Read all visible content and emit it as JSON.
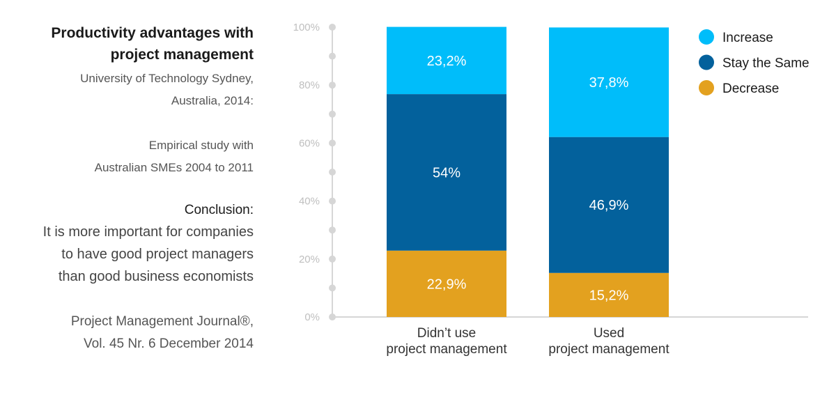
{
  "side_text": {
    "title_line1": "Productivity advantages with",
    "title_line2": "project management",
    "source_line1": "University of Technology Sydney,",
    "source_line2": "Australia, 2014:",
    "study_line1": "Empirical study with",
    "study_line2": "Australian SMEs 2004 to 2011",
    "conclusion_heading": "Conclusion:",
    "conclusion_line1": "It is more important for companies",
    "conclusion_line2": "to have good project managers",
    "conclusion_line3": "than good business economists",
    "journal_line1": "Project Management Journal®,",
    "journal_line2": "Vol. 45 Nr. 6 December 2014"
  },
  "chart_data": {
    "type": "bar",
    "stacked": true,
    "title": "",
    "xlabel": "",
    "ylabel": "",
    "ylim": [
      0,
      100
    ],
    "y_ticks": [
      "0%",
      "20%",
      "40%",
      "60%",
      "80%",
      "100%"
    ],
    "categories": [
      [
        "Didn’t use",
        "project management"
      ],
      [
        "Used",
        "project management"
      ]
    ],
    "series": [
      {
        "name": "Decrease",
        "color": "#e3a11f",
        "values": [
          22.9,
          15.2
        ],
        "labels": [
          "22,9%",
          "15,2%"
        ]
      },
      {
        "name": "Stay the Same",
        "color": "#03619c",
        "values": [
          54,
          46.9
        ],
        "labels": [
          "54%",
          "46,9%"
        ]
      },
      {
        "name": "Increase",
        "color": "#00bdfa",
        "values": [
          23.2,
          37.8
        ],
        "labels": [
          "23,2%",
          "37,8%"
        ]
      }
    ],
    "legend_order": [
      "Increase",
      "Stay the Same",
      "Decrease"
    ],
    "legend_position": "top-right",
    "axis_color": "#d6d6d6"
  }
}
